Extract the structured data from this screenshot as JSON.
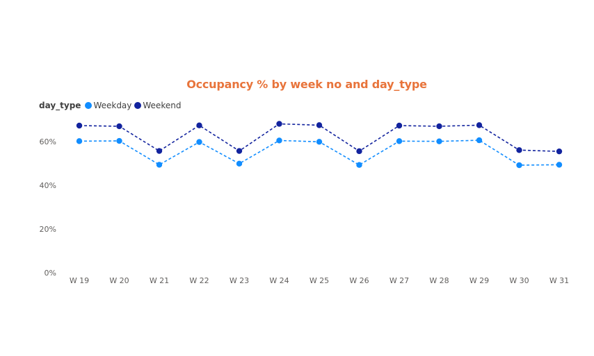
{
  "chart_data": {
    "type": "line",
    "title": "Occupancy % by week no and day_type",
    "legend_title": "day_type",
    "legend_position": "top-left",
    "categories": [
      "W 19",
      "W 20",
      "W 21",
      "W 22",
      "W 23",
      "W 24",
      "W 25",
      "W 26",
      "W 27",
      "W 28",
      "W 29",
      "W 30",
      "W 31"
    ],
    "yticks": [
      0,
      20,
      40,
      60
    ],
    "ytick_labels": [
      "0%",
      "20%",
      "40%",
      "60%"
    ],
    "ylim": [
      0,
      70
    ],
    "grid": false,
    "series": [
      {
        "name": "Weekday",
        "color": "#118dff",
        "values": [
          60.2,
          60.3,
          49.4,
          59.8,
          49.9,
          60.5,
          59.9,
          49.3,
          60.2,
          60.1,
          60.6,
          49.2,
          49.4
        ]
      },
      {
        "name": "Weekend",
        "color": "#12239e",
        "values": [
          67.3,
          67.0,
          55.7,
          67.4,
          55.7,
          68.1,
          67.5,
          55.6,
          67.3,
          67.0,
          67.5,
          56.1,
          55.5
        ]
      }
    ]
  }
}
